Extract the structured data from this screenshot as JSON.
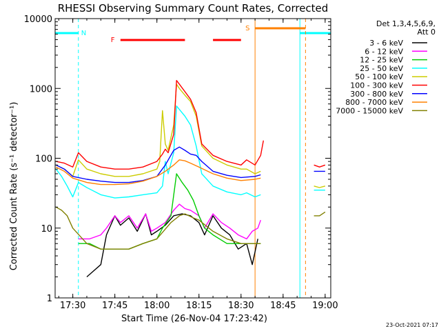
{
  "chart_data": {
    "type": "line",
    "title": "RHESSI Observing Summary Count Rates, Corrected",
    "xlabel": "Start Time (26-Nov-04 17:23:42)",
    "ylabel": "Corrected Count Rate (s⁻¹ detector⁻¹)",
    "y_scale": "log",
    "ylim": [
      1,
      10000
    ],
    "xlim": [
      "17:23:42",
      "19:02:00"
    ],
    "x_ticks": [
      "17:30",
      "17:45",
      "18:00",
      "18:15",
      "18:30",
      "18:45",
      "19:00"
    ],
    "y_ticks": [
      "1",
      "10",
      "100",
      "1000",
      "10000"
    ],
    "legend_title": [
      "Det 1,3,4,5,6,9,",
      "Att 0"
    ],
    "legend_position": "right",
    "footer": "23-Oct-2021 07:17",
    "annotations": {
      "night": {
        "label": "N",
        "color": "#00ffff",
        "intervals": [
          [
            "17:23:42",
            "17:32:00"
          ],
          [
            "18:51:00",
            "19:02:00"
          ]
        ]
      },
      "flare": {
        "label": "F",
        "color": "#ff0000",
        "intervals": [
          [
            "17:47:00",
            "18:10:00"
          ],
          [
            "18:20:00",
            "18:30:00"
          ]
        ]
      },
      "saa": {
        "label": "S",
        "color": "#ff8000",
        "intervals": [
          [
            "18:35:00",
            "18:53:00"
          ]
        ]
      }
    },
    "series": [
      {
        "name": "3 - 6 keV",
        "color": "#000000",
        "x": [
          "17:24",
          "17:30",
          "17:35",
          "17:40",
          "17:42",
          "17:45",
          "17:47",
          "17:50",
          "17:53",
          "17:56",
          "17:58",
          "18:00",
          "18:03",
          "18:06",
          "18:09",
          "18:12",
          "18:15",
          "18:17",
          "18:20",
          "18:23",
          "18:26",
          "18:29",
          "18:32",
          "18:34",
          "18:36",
          "18:54",
          "18:58",
          "19:00"
        ],
        "y": [
          null,
          null,
          2,
          3,
          8,
          15,
          11,
          14,
          9,
          16,
          8,
          9,
          11,
          15,
          16,
          15,
          12,
          8,
          15,
          10,
          8,
          5,
          6,
          3,
          7,
          null,
          null,
          null
        ]
      },
      {
        "name": "6 - 12 keV",
        "color": "#ff00ff",
        "x": [
          "17:32",
          "17:36",
          "17:40",
          "17:42",
          "17:45",
          "17:47",
          "17:50",
          "17:53",
          "17:56",
          "17:58",
          "18:00",
          "18:03",
          "18:06",
          "18:08",
          "18:10",
          "18:12",
          "18:15",
          "18:17",
          "18:20",
          "18:23",
          "18:26",
          "18:29",
          "18:32",
          "18:34",
          "18:36",
          "18:37"
        ],
        "y": [
          7,
          7,
          8,
          10,
          15,
          12,
          15,
          10,
          16,
          9,
          10,
          12,
          18,
          22,
          19,
          18,
          15,
          10,
          16,
          12,
          10,
          8,
          7,
          9,
          10,
          13
        ]
      },
      {
        "name": "12 - 25 keV",
        "color": "#00cc00",
        "x": [
          "17:32",
          "17:36",
          "17:40",
          "17:45",
          "17:50",
          "17:55",
          "18:00",
          "18:02",
          "18:05",
          "18:07",
          "18:09",
          "18:11",
          "18:13",
          "18:15",
          "18:17",
          "18:20",
          "18:25",
          "18:30",
          "18:34",
          "18:37"
        ],
        "y": [
          6,
          6,
          5,
          5,
          5,
          6,
          7,
          10,
          15,
          60,
          45,
          35,
          25,
          15,
          10,
          8,
          6,
          6,
          6,
          6
        ]
      },
      {
        "name": "25 - 50 keV",
        "color": "#00ffff",
        "x": [
          "17:24",
          "17:26",
          "17:28",
          "17:30",
          "17:32",
          "17:35",
          "17:40",
          "17:45",
          "17:50",
          "17:55",
          "18:00",
          "18:02",
          "18:03",
          "18:04",
          "18:06",
          "18:07",
          "18:08",
          "18:10",
          "18:12",
          "18:14",
          "18:16",
          "18:20",
          "18:25",
          "18:30",
          "18:32",
          "18:35",
          "18:37",
          "18:54",
          "18:56",
          "18:58",
          "19:00"
        ],
        "y": [
          70,
          55,
          40,
          28,
          45,
          38,
          30,
          27,
          28,
          30,
          32,
          40,
          90,
          60,
          120,
          560,
          500,
          400,
          300,
          150,
          60,
          40,
          33,
          30,
          32,
          28,
          30,
          null,
          35,
          35,
          35
        ]
      },
      {
        "name": "50 - 100 keV",
        "color": "#cccc00",
        "x": [
          "17:24",
          "17:27",
          "17:30",
          "17:32",
          "17:35",
          "17:40",
          "17:45",
          "17:50",
          "17:55",
          "18:00",
          "18:01",
          "18:02",
          "18:03",
          "18:04",
          "18:06",
          "18:07",
          "18:08",
          "18:10",
          "18:12",
          "18:14",
          "18:16",
          "18:20",
          "18:25",
          "18:30",
          "18:32",
          "18:35",
          "18:37",
          "18:54",
          "18:56",
          "18:58",
          "19:00"
        ],
        "y": [
          80,
          70,
          55,
          95,
          70,
          60,
          55,
          55,
          60,
          70,
          90,
          480,
          160,
          130,
          300,
          1150,
          1000,
          800,
          650,
          400,
          150,
          100,
          80,
          70,
          70,
          60,
          65,
          null,
          40,
          38,
          40
        ]
      },
      {
        "name": "100 - 300 keV",
        "color": "#ff0000",
        "x": [
          "17:24",
          "17:27",
          "17:30",
          "17:32",
          "17:35",
          "17:40",
          "17:45",
          "17:50",
          "17:55",
          "18:00",
          "18:02",
          "18:03",
          "18:04",
          "18:06",
          "18:07",
          "18:08",
          "18:10",
          "18:12",
          "18:14",
          "18:16",
          "18:20",
          "18:25",
          "18:30",
          "18:32",
          "18:35",
          "18:37",
          "18:38",
          "18:54",
          "18:56",
          "18:58",
          "19:00"
        ],
        "y": [
          90,
          85,
          75,
          120,
          90,
          75,
          70,
          70,
          75,
          90,
          115,
          135,
          120,
          220,
          1300,
          1150,
          900,
          700,
          450,
          160,
          110,
          90,
          80,
          95,
          80,
          110,
          180,
          null,
          80,
          75,
          80
        ]
      },
      {
        "name": "300 - 800 keV",
        "color": "#0000ff",
        "x": [
          "17:24",
          "17:27",
          "17:30",
          "17:35",
          "17:40",
          "17:45",
          "17:50",
          "17:55",
          "18:00",
          "18:03",
          "18:06",
          "18:08",
          "18:10",
          "18:12",
          "18:14",
          "18:16",
          "18:20",
          "18:25",
          "18:30",
          "18:35",
          "18:37",
          "18:54",
          "18:56",
          "18:58",
          "19:00"
        ],
        "y": [
          80,
          70,
          55,
          50,
          47,
          45,
          45,
          48,
          55,
          80,
          130,
          145,
          130,
          115,
          110,
          90,
          65,
          57,
          53,
          55,
          58,
          null,
          65,
          65,
          65
        ]
      },
      {
        "name": "800 - 7000 keV",
        "color": "#ff8000",
        "x": [
          "17:24",
          "17:27",
          "17:30",
          "17:35",
          "17:40",
          "17:45",
          "17:50",
          "17:55",
          "18:00",
          "18:03",
          "18:06",
          "18:08",
          "18:10",
          "18:12",
          "18:15",
          "18:20",
          "18:25",
          "18:30",
          "18:35",
          "18:37"
        ],
        "y": [
          75,
          65,
          52,
          45,
          42,
          42,
          43,
          47,
          55,
          65,
          80,
          95,
          92,
          85,
          75,
          60,
          52,
          48,
          50,
          52
        ]
      },
      {
        "name": "7000 - 15000 keV",
        "color": "#808000",
        "x": [
          "17:24",
          "17:26",
          "17:28",
          "17:30",
          "17:35",
          "17:40",
          "17:45",
          "17:50",
          "17:55",
          "18:00",
          "18:05",
          "18:08",
          "18:10",
          "18:13",
          "18:15",
          "18:20",
          "18:25",
          "18:30",
          "18:35",
          "18:37",
          "18:54",
          "18:56",
          "18:58",
          "19:00"
        ],
        "y": [
          20,
          18,
          15,
          10,
          6,
          5,
          5,
          5,
          6,
          7,
          12,
          15,
          16,
          14,
          13,
          9,
          7,
          6,
          6,
          6,
          null,
          15,
          15,
          17
        ]
      }
    ]
  }
}
